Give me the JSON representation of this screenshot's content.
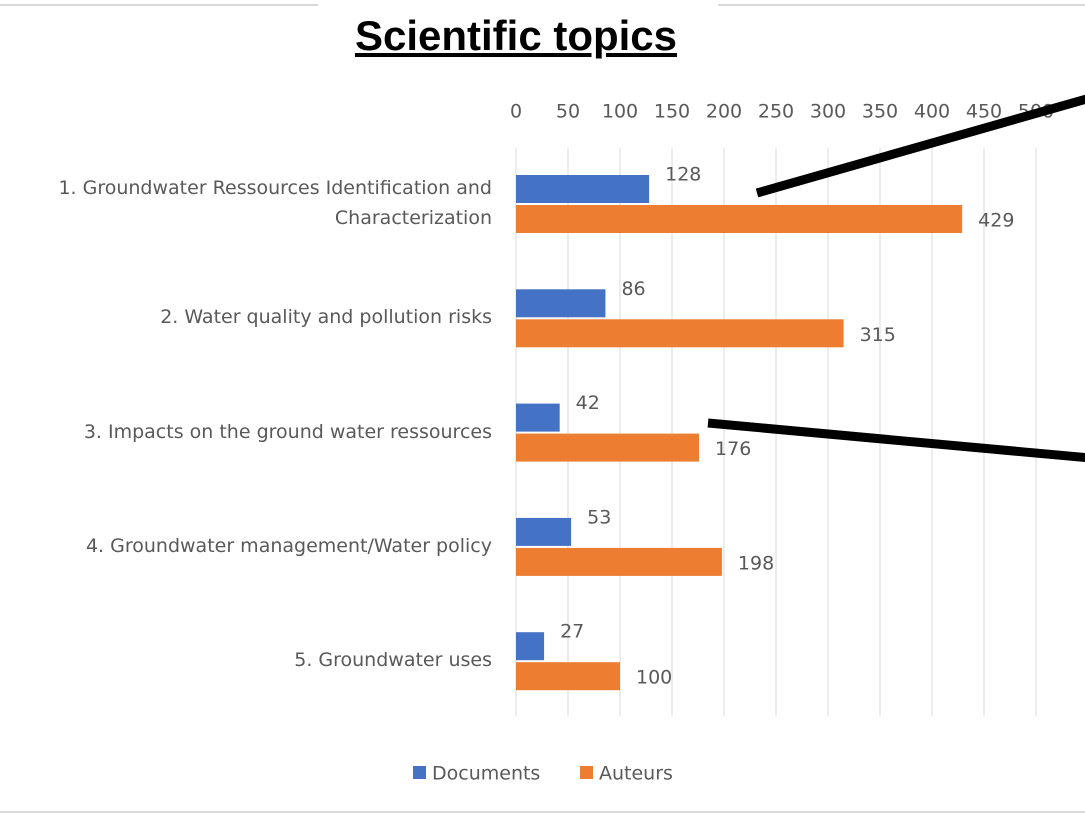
{
  "chart_data": {
    "type": "bar",
    "orientation": "horizontal",
    "title": "Scientific topics",
    "categories": [
      "1. Groundwater Ressources Identification and Characterization",
      "2. Water quality and pollution risks",
      "3. Impacts on the ground water ressources",
      "4. Groundwater management/Water policy",
      "5. Groundwater uses"
    ],
    "series": [
      {
        "name": "Documents",
        "color": "#4472c4",
        "values": [
          128,
          86,
          42,
          53,
          27
        ]
      },
      {
        "name": "Auteurs",
        "color": "#ed7d31",
        "values": [
          429,
          315,
          176,
          198,
          100
        ]
      }
    ],
    "xlim": [
      0,
      500
    ],
    "xticks": [
      0,
      50,
      100,
      150,
      200,
      250,
      300,
      350,
      400,
      450,
      500
    ],
    "grid": true,
    "legend": "bottom"
  }
}
